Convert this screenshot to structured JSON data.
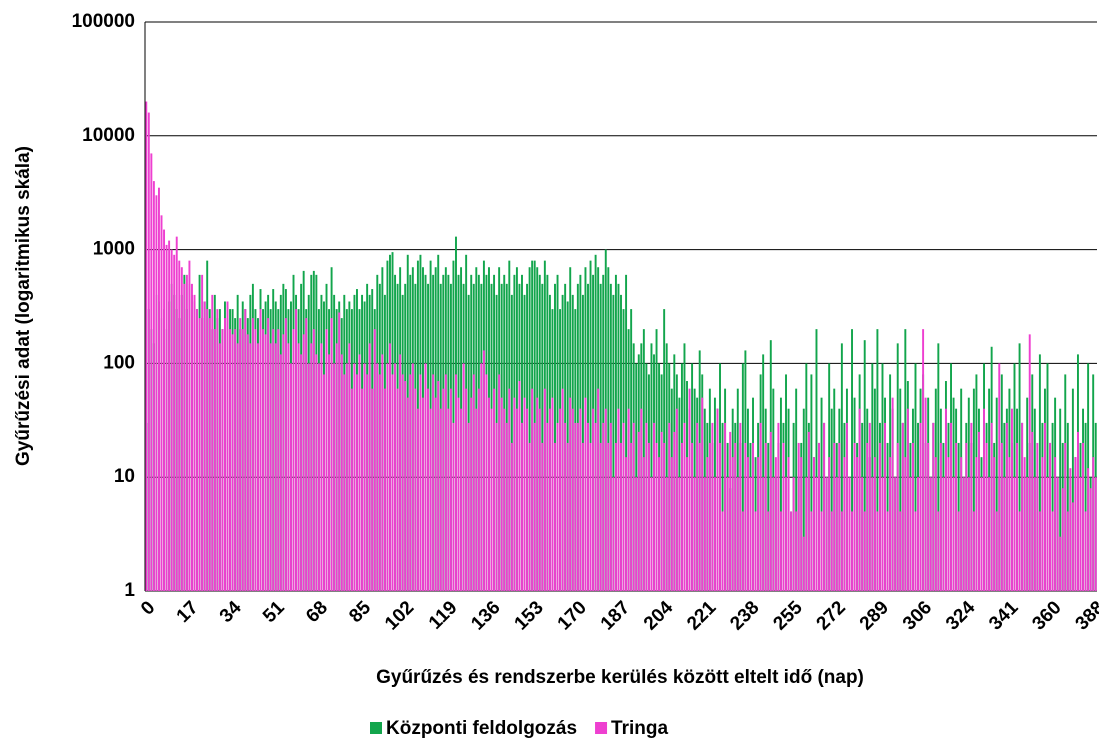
{
  "chart_data": {
    "type": "bar",
    "xlabel": "Gyűrűzés és rendszerbe kerülés között eltelt idő (nap)",
    "ylabel": "Gyűrűzési adat (logaritmikus skála)",
    "log_y": true,
    "grid": true,
    "legend": "bottom",
    "ylim": [
      1,
      100000
    ],
    "yticks": [
      1,
      10,
      100,
      1000,
      10000,
      100000
    ],
    "categories": [
      "0",
      null,
      null,
      null,
      null,
      null,
      null,
      null,
      null,
      null,
      null,
      null,
      null,
      null,
      null,
      null,
      null,
      "17",
      null,
      null,
      null,
      null,
      null,
      null,
      null,
      null,
      null,
      null,
      null,
      null,
      null,
      null,
      null,
      null,
      "34",
      null,
      null,
      null,
      null,
      null,
      null,
      null,
      null,
      null,
      null,
      null,
      null,
      null,
      null,
      null,
      null,
      "51",
      null,
      null,
      null,
      null,
      null,
      null,
      null,
      null,
      null,
      null,
      null,
      null,
      null,
      null,
      null,
      null,
      "68",
      null,
      null,
      null,
      null,
      null,
      null,
      null,
      null,
      null,
      null,
      null,
      null,
      null,
      null,
      null,
      null,
      "85",
      null,
      null,
      null,
      null,
      null,
      null,
      null,
      null,
      null,
      null,
      null,
      null,
      null,
      null,
      null,
      null,
      "102",
      null,
      null,
      null,
      null,
      null,
      null,
      null,
      null,
      null,
      null,
      null,
      null,
      null,
      null,
      null,
      null,
      "119",
      null,
      null,
      null,
      null,
      null,
      null,
      null,
      null,
      null,
      null,
      null,
      null,
      null,
      null,
      null,
      null,
      "136",
      null,
      null,
      null,
      null,
      null,
      null,
      null,
      null,
      null,
      null,
      null,
      null,
      null,
      null,
      null,
      null,
      "153",
      null,
      null,
      null,
      null,
      null,
      null,
      null,
      null,
      null,
      null,
      null,
      null,
      null,
      null,
      null,
      null,
      "170",
      null,
      null,
      null,
      null,
      null,
      null,
      null,
      null,
      null,
      null,
      null,
      null,
      null,
      null,
      null,
      null,
      "187",
      null,
      null,
      null,
      null,
      null,
      null,
      null,
      null,
      null,
      null,
      null,
      null,
      null,
      null,
      null,
      null,
      "204",
      null,
      null,
      null,
      null,
      null,
      null,
      null,
      null,
      null,
      null,
      null,
      null,
      null,
      null,
      null,
      null,
      "221",
      null,
      null,
      null,
      null,
      null,
      null,
      null,
      null,
      null,
      null,
      null,
      null,
      null,
      null,
      null,
      null,
      "238",
      null,
      null,
      null,
      null,
      null,
      null,
      null,
      null,
      null,
      null,
      null,
      null,
      null,
      null,
      null,
      null,
      "255",
      null,
      null,
      null,
      null,
      null,
      null,
      null,
      null,
      null,
      null,
      null,
      null,
      null,
      null,
      null,
      null,
      "272",
      null,
      null,
      null,
      null,
      null,
      null,
      null,
      null,
      null,
      null,
      null,
      null,
      null,
      null,
      null,
      null,
      "289",
      null,
      null,
      null,
      null,
      null,
      null,
      null,
      null,
      null,
      null,
      null,
      null,
      null,
      null,
      null,
      null,
      "306",
      null,
      null,
      null,
      null,
      null,
      null,
      null,
      null,
      null,
      null,
      null,
      null,
      null,
      null,
      null,
      null,
      "324",
      null,
      null,
      null,
      null,
      null,
      null,
      null,
      null,
      null,
      null,
      null,
      null,
      null,
      null,
      null,
      null,
      "341",
      null,
      null,
      null,
      null,
      null,
      null,
      null,
      null,
      null,
      null,
      null,
      null,
      null,
      null,
      null,
      null,
      "360",
      null,
      null,
      null,
      null,
      null,
      null,
      null,
      null,
      null,
      null,
      null,
      null,
      null,
      null,
      null,
      null,
      "388"
    ],
    "series": [
      {
        "name": "Központi feldolgozás",
        "color": "#12a54c",
        "values": [
          30,
          300,
          200,
          150,
          400,
          350,
          250,
          300,
          200,
          350,
          500,
          400,
          300,
          250,
          400,
          600,
          300,
          500,
          400,
          350,
          300,
          600,
          250,
          350,
          800,
          300,
          200,
          400,
          250,
          300,
          200,
          350,
          250,
          300,
          300,
          250,
          400,
          200,
          350,
          300,
          250,
          400,
          500,
          300,
          250,
          450,
          300,
          350,
          400,
          300,
          450,
          350,
          300,
          400,
          500,
          450,
          300,
          350,
          600,
          400,
          300,
          500,
          650,
          300,
          400,
          600,
          650,
          600,
          300,
          400,
          350,
          500,
          300,
          700,
          400,
          300,
          350,
          250,
          400,
          300,
          350,
          300,
          400,
          450,
          300,
          400,
          350,
          500,
          400,
          450,
          300,
          600,
          500,
          700,
          400,
          800,
          900,
          950,
          600,
          500,
          700,
          400,
          500,
          900,
          600,
          700,
          500,
          800,
          900,
          700,
          600,
          500,
          800,
          600,
          700,
          900,
          500,
          600,
          700,
          600,
          500,
          800,
          1300,
          600,
          700,
          500,
          900,
          400,
          600,
          500,
          700,
          600,
          500,
          800,
          600,
          700,
          500,
          600,
          400,
          700,
          500,
          600,
          500,
          800,
          400,
          600,
          700,
          500,
          600,
          400,
          500,
          700,
          800,
          800,
          700,
          600,
          500,
          800,
          600,
          400,
          300,
          500,
          600,
          300,
          400,
          500,
          350,
          700,
          400,
          300,
          500,
          600,
          400,
          700,
          500,
          800,
          600,
          900,
          700,
          500,
          600,
          1000,
          700,
          500,
          400,
          600,
          500,
          400,
          300,
          600,
          200,
          300,
          150,
          100,
          120,
          150,
          200,
          100,
          80,
          150,
          120,
          200,
          100,
          80,
          300,
          150,
          100,
          60,
          120,
          80,
          50,
          100,
          150,
          70,
          40,
          100,
          60,
          50,
          130,
          80,
          40,
          30,
          60,
          20,
          50,
          40,
          100,
          30,
          60,
          20,
          8,
          40,
          30,
          60,
          20,
          100,
          130,
          40,
          20,
          50,
          15,
          30,
          80,
          120,
          40,
          20,
          160,
          60,
          10,
          20,
          50,
          30,
          80,
          40,
          5,
          30,
          60,
          10,
          20,
          40,
          100,
          30,
          80,
          15,
          200,
          20,
          50,
          30,
          10,
          100,
          40,
          60,
          20,
          40,
          150,
          30,
          60,
          10,
          200,
          50,
          20,
          80,
          30,
          160,
          40,
          15,
          100,
          60,
          200,
          30,
          100,
          50,
          20,
          80,
          40,
          10,
          150,
          60,
          30,
          200,
          70,
          20,
          40,
          100,
          30,
          60,
          80,
          20,
          50,
          10,
          30,
          60,
          150,
          40,
          20,
          70,
          30,
          100,
          50,
          40,
          20,
          60,
          10,
          30,
          50,
          20,
          60,
          80,
          40,
          15,
          100,
          30,
          60,
          140,
          20,
          50,
          10,
          80,
          30,
          40,
          60,
          20,
          100,
          40,
          150,
          30,
          10,
          50,
          20,
          80,
          40,
          10,
          120,
          30,
          60,
          100,
          20,
          30,
          50,
          10,
          40,
          20,
          80,
          30,
          10,
          60,
          15,
          120,
          20,
          40,
          30,
          100,
          10,
          80,
          30
        ]
      },
      {
        "name": "Tringa",
        "color": "#ee3fd0",
        "values": [
          20000,
          16000,
          7000,
          4000,
          3000,
          3500,
          2000,
          1500,
          1100,
          1200,
          1000,
          900,
          1300,
          800,
          700,
          500,
          600,
          800,
          500,
          400,
          300,
          250,
          600,
          350,
          300,
          250,
          400,
          200,
          300,
          150,
          200,
          250,
          350,
          200,
          180,
          200,
          150,
          250,
          200,
          300,
          180,
          150,
          250,
          200,
          150,
          300,
          200,
          180,
          250,
          150,
          200,
          150,
          200,
          120,
          180,
          250,
          150,
          100,
          200,
          300,
          150,
          120,
          180,
          250,
          100,
          150,
          200,
          120,
          100,
          150,
          80,
          200,
          120,
          250,
          100,
          150,
          280,
          120,
          80,
          100,
          150,
          60,
          100,
          80,
          120,
          60,
          100,
          80,
          150,
          60,
          200,
          100,
          80,
          120,
          60,
          100,
          150,
          80,
          100,
          60,
          120,
          80,
          70,
          50,
          80,
          100,
          60,
          40,
          80,
          50,
          100,
          60,
          40,
          80,
          50,
          70,
          40,
          60,
          80,
          40,
          60,
          30,
          80,
          50,
          40,
          100,
          60,
          30,
          50,
          80,
          40,
          60,
          100,
          130,
          80,
          50,
          40,
          60,
          30,
          80,
          50,
          40,
          30,
          60,
          20,
          50,
          40,
          70,
          30,
          50,
          40,
          20,
          60,
          30,
          50,
          40,
          20,
          60,
          30,
          40,
          50,
          20,
          30,
          40,
          60,
          30,
          20,
          50,
          40,
          30,
          30,
          40,
          20,
          50,
          30,
          20,
          40,
          30,
          60,
          20,
          30,
          40,
          20,
          30,
          10,
          20,
          40,
          20,
          30,
          15,
          40,
          20,
          30,
          10,
          25,
          40,
          15,
          30,
          20,
          10,
          30,
          20,
          15,
          25,
          20,
          10,
          30,
          15,
          25,
          40,
          10,
          20,
          30,
          15,
          60,
          20,
          10,
          30,
          20,
          50,
          10,
          15,
          20,
          30,
          10,
          40,
          20,
          5,
          30,
          10,
          25,
          15,
          20,
          10,
          30,
          5,
          20,
          15,
          10,
          20,
          5,
          15,
          30,
          10,
          20,
          5,
          25,
          10,
          15,
          30,
          5,
          20,
          10,
          15,
          5,
          10,
          5,
          20,
          15,
          3,
          10,
          25,
          5,
          15,
          10,
          20,
          5,
          30,
          10,
          15,
          5,
          20,
          10,
          20,
          5,
          15,
          30,
          10,
          5,
          20,
          15,
          40,
          10,
          5,
          20,
          30,
          10,
          15,
          5,
          20,
          10,
          30,
          5,
          15,
          50,
          10,
          20,
          5,
          30,
          15,
          40,
          10,
          20,
          5,
          10,
          30,
          200,
          50,
          20,
          10,
          30,
          15,
          5,
          20,
          10,
          40,
          15,
          30,
          10,
          20,
          5,
          15,
          10,
          20,
          10,
          30,
          5,
          15,
          25,
          10,
          40,
          20,
          10,
          30,
          15,
          5,
          100,
          20,
          10,
          30,
          15,
          40,
          10,
          20,
          5,
          30,
          15,
          10,
          180,
          25,
          10,
          20,
          5,
          15,
          30,
          10,
          20,
          5,
          15,
          10,
          3,
          8,
          20,
          5,
          12,
          6,
          15,
          25,
          10,
          20,
          5,
          12,
          8,
          15,
          10
        ]
      }
    ]
  }
}
